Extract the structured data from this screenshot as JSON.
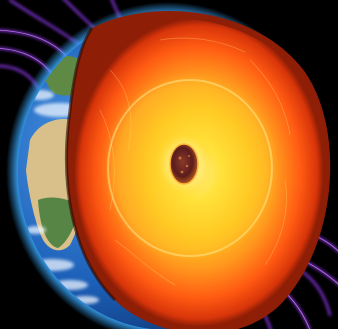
{
  "image": {
    "subject": "earth-interior-cutaway",
    "colors": {
      "space": "#000000",
      "field_lines": "#9a3cff",
      "field_lines_glow": "#d98bff",
      "atmosphere_glow": "#39a8ff",
      "ocean": "#1c5fb8",
      "land_desert": "#d9c08a",
      "land_green": "#3f7a3a",
      "clouds": "#eef5ff",
      "crust": "#b52a08",
      "mantle_outer": "#ff5a12",
      "mantle_inner": "#ff9a1e",
      "outer_core": "#ffd21c",
      "inner_core_glow": "#fff7b0",
      "inner_core": "#5a1c1c"
    },
    "layers": [
      {
        "name": "crust",
        "icon": "crust-shell"
      },
      {
        "name": "mantle",
        "icon": "mantle-shell"
      },
      {
        "name": "outer-core",
        "icon": "outer-core-shell"
      },
      {
        "name": "inner-core",
        "icon": "inner-core-ball"
      }
    ]
  }
}
